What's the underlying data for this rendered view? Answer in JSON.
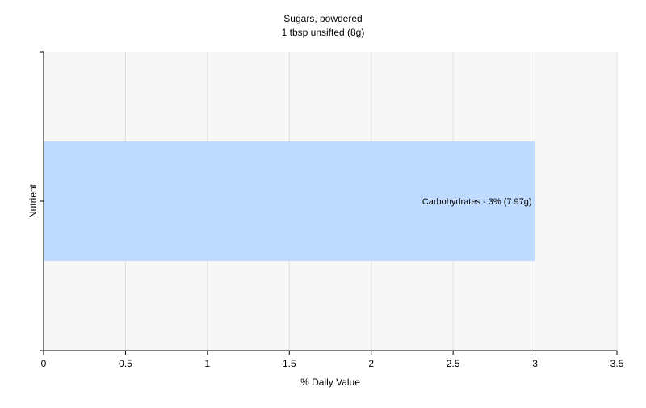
{
  "chart_data": {
    "type": "bar",
    "orientation": "horizontal",
    "title": "Sugars, powdered",
    "subtitle": "1 tbsp unsifted (8g)",
    "xlabel": "% Daily Value",
    "ylabel": "Nutrient",
    "xlim": [
      0,
      3.5
    ],
    "x_ticks": [
      "0",
      "0.5",
      "1",
      "1.5",
      "2",
      "2.5",
      "3",
      "3.5"
    ],
    "categories": [
      "Carbohydrates"
    ],
    "values": [
      3
    ],
    "data_labels": [
      "Carbohydrates - 3% (7.97g)"
    ],
    "bar_color": "#bfdbff",
    "grid": true,
    "legend": "none"
  }
}
